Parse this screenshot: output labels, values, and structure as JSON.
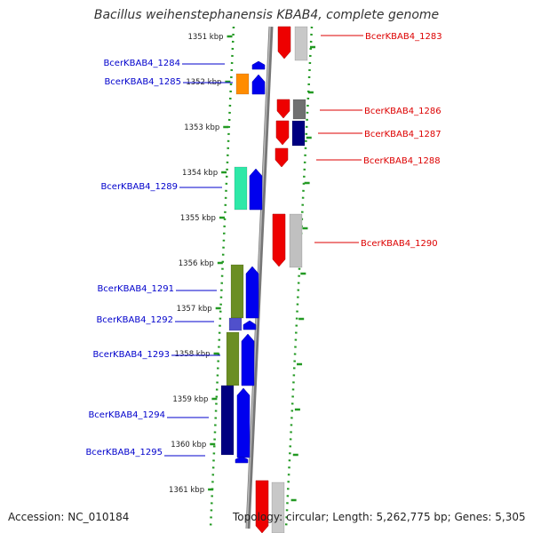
{
  "title": "Bacillus weihenstephanensis KBAB4, complete genome",
  "footer": {
    "accession": "Accession: NC_010184",
    "topology": "Topology: circular; Length: 5,262,775 bp; Genes: 5,305"
  },
  "colors": {
    "forward_label": "#0000cc",
    "reverse_label": "#dd0000",
    "backbone": "#888888",
    "dotted_ring": "#229922"
  },
  "ticks": [
    {
      "label": "1351 kbp"
    },
    {
      "label": "1352 kbp"
    },
    {
      "label": "1353 kbp"
    },
    {
      "label": "1354 kbp"
    },
    {
      "label": "1355 kbp"
    },
    {
      "label": "1356 kbp"
    },
    {
      "label": "1357 kbp"
    },
    {
      "label": "1358 kbp"
    },
    {
      "label": "1359 kbp"
    },
    {
      "label": "1360 kbp"
    },
    {
      "label": "1361 kbp"
    }
  ],
  "genes": {
    "forward": [
      {
        "label": "BcerKBAB4_1284"
      },
      {
        "label": "BcerKBAB4_1285"
      },
      {
        "label": "BcerKBAB4_1289"
      },
      {
        "label": "BcerKBAB4_1291"
      },
      {
        "label": "BcerKBAB4_1292"
      },
      {
        "label": "BcerKBAB4_1293"
      },
      {
        "label": "BcerKBAB4_1294"
      },
      {
        "label": "BcerKBAB4_1295"
      }
    ],
    "reverse": [
      {
        "label": "BcerKBAB4_1283"
      },
      {
        "label": "BcerKBAB4_1286"
      },
      {
        "label": "BcerKBAB4_1287"
      },
      {
        "label": "BcerKBAB4_1288"
      },
      {
        "label": "BcerKBAB4_1290"
      }
    ]
  }
}
